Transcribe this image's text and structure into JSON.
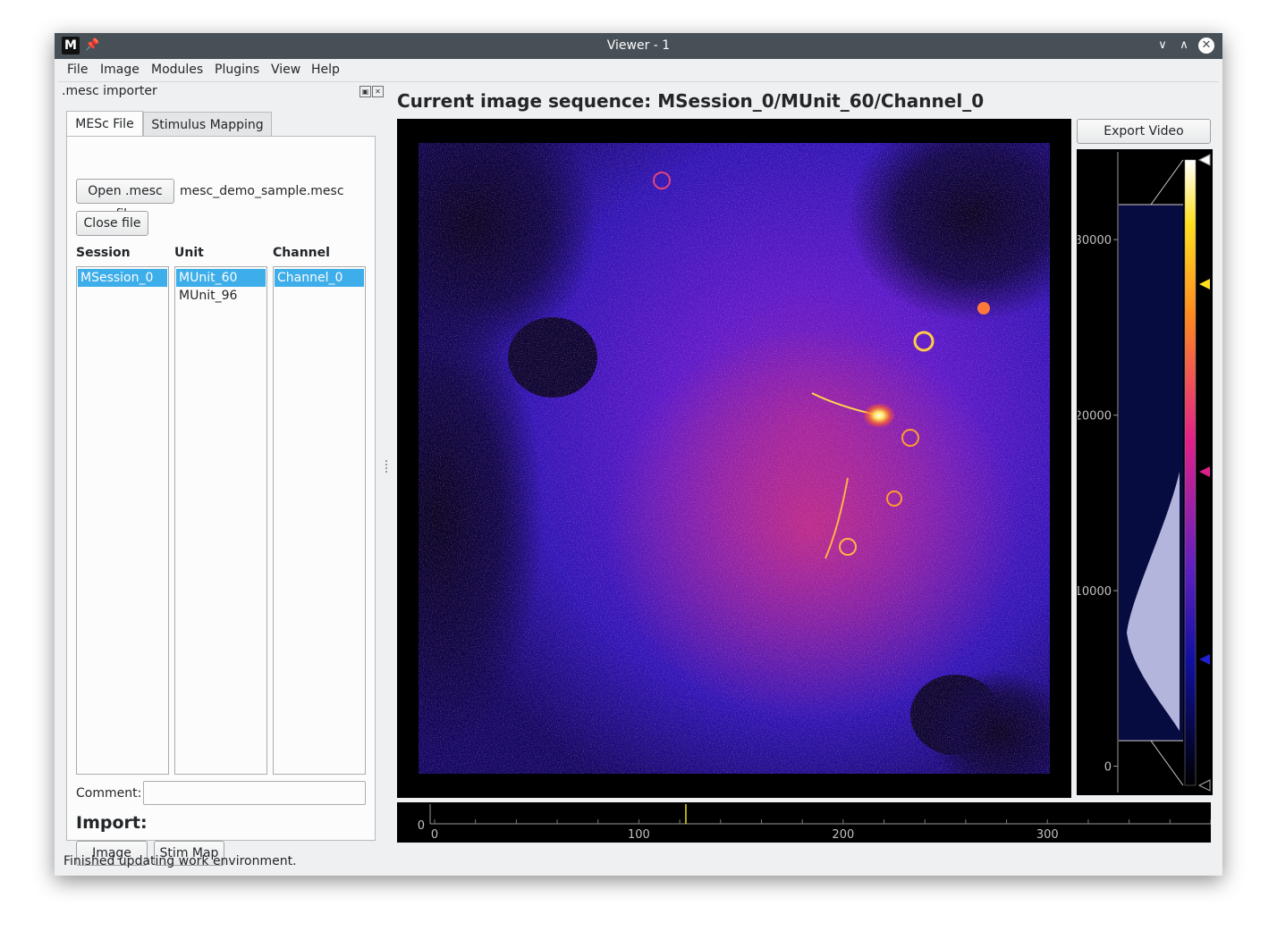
{
  "window": {
    "title": "Viewer - 1",
    "app_icon": "M",
    "icons": [
      "app-logo-icon",
      "pin-icon",
      "minimize-icon",
      "maximize-icon",
      "close-icon"
    ]
  },
  "menu": [
    {
      "label": "File"
    },
    {
      "label": "Image"
    },
    {
      "label": "Modules"
    },
    {
      "label": "Plugins"
    },
    {
      "label": "View"
    },
    {
      "label": "Help"
    }
  ],
  "dock": {
    "title": ".mesc importer",
    "tabs": [
      {
        "label": "MESc File",
        "active": true
      },
      {
        "label": "Stimulus Mapping",
        "active": false
      }
    ],
    "open_button": "Open .mesc file",
    "file_name": "mesc_demo_sample.mesc",
    "close_button": "Close file",
    "columns": {
      "session": {
        "header": "Session",
        "items": [
          "MSession_0"
        ],
        "selected": 0
      },
      "unit": {
        "header": "Unit",
        "items": [
          "MUnit_60",
          "MUnit_96"
        ],
        "selected": 0
      },
      "channel": {
        "header": "Channel",
        "items": [
          "Channel_0"
        ],
        "selected": 0
      }
    },
    "comment_label": "Comment:",
    "comment_value": "",
    "import_label": "Import:",
    "import_image_button": "Image",
    "import_stim_button": "Stim Map"
  },
  "viewer": {
    "sequence_title": "Current image sequence: MSession_0/MUnit_60/Channel_0",
    "export_button": "Export Video",
    "colormap": "fire",
    "histogram_axis": [
      {
        "value": 30000,
        "label": "30000"
      },
      {
        "value": 20000,
        "label": "20000"
      },
      {
        "value": 10000,
        "label": "10000"
      },
      {
        "value": 0,
        "label": "0"
      }
    ],
    "histogram_range": [
      -1500,
      35000
    ],
    "timeline": {
      "y_label": "0",
      "range": [
        0,
        380
      ],
      "ticks": [
        {
          "value": 0,
          "label": "0"
        },
        {
          "value": 100,
          "label": "100"
        },
        {
          "value": 200,
          "label": "200"
        },
        {
          "value": 300,
          "label": "300"
        }
      ],
      "current_frame": 123
    }
  },
  "status": "Finished updating work environment."
}
